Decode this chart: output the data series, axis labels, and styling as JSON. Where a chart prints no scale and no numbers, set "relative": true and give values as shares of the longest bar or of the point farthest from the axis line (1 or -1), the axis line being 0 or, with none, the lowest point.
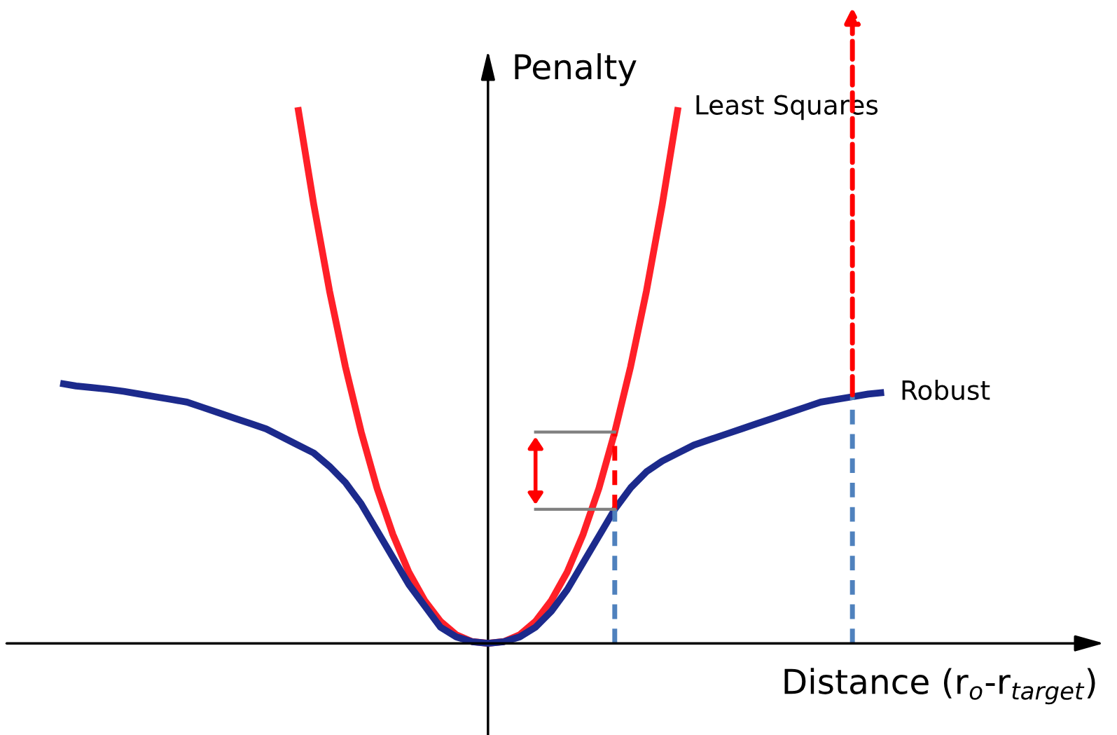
{
  "chart_data": {
    "type": "line",
    "relative": true,
    "xlabel": "Distance (r$_{o}$-r$_{target}$)",
    "ylabel": "Penalty",
    "legend": false,
    "grid": false,
    "categories": [
      null,
      null,
      null,
      null,
      null,
      null,
      null,
      null,
      null,
      null,
      null,
      null,
      null,
      null,
      null,
      null,
      null,
      null,
      null,
      null,
      null,
      null,
      null,
      null,
      null,
      null,
      null,
      null,
      null,
      null,
      null,
      null,
      null,
      null,
      null,
      null,
      null,
      null,
      null,
      null,
      null,
      null,
      null,
      null,
      null,
      null,
      null,
      null,
      null,
      null,
      null,
      null,
      null
    ],
    "series": [
      {
        "name": "Least Squares",
        "color": "#ff2028",
        "values": [
          null,
          null,
          null,
          null,
          null,
          null,
          null,
          null,
          null,
          null,
          null,
          null,
          null,
          null,
          null,
          1,
          0.819,
          0.657,
          0.516,
          0.394,
          0.289,
          0.203,
          0.133,
          0.08,
          0.041,
          0.016,
          0.0033,
          0,
          0.0033,
          0.016,
          0.041,
          0.08,
          0.133,
          0.203,
          0.289,
          0.394,
          0.516,
          0.657,
          0.819,
          1,
          null,
          null,
          null,
          null,
          null,
          null,
          null,
          null,
          null,
          null,
          null,
          null,
          null
        ]
      },
      {
        "name": "Robust",
        "color": "#1c2a8c",
        "values": [
          0.485,
          0.48,
          0.477,
          0.474,
          0.47,
          0.465,
          0.46,
          0.455,
          0.45,
          0.44,
          0.43,
          0.42,
          0.41,
          0.4,
          0.385,
          0.37,
          0.355,
          0.33,
          0.3,
          0.26,
          0.21,
          0.16,
          0.11,
          0.07,
          0.03,
          0.012,
          0.003,
          0,
          0.003,
          0.012,
          0.03,
          0.06,
          0.1,
          0.15,
          0.2,
          0.25,
          0.29,
          0.32,
          0.34,
          0.355,
          0.37,
          0.38,
          0.39,
          0.4,
          0.41,
          0.42,
          0.43,
          0.44,
          0.45,
          0.455,
          0.46,
          0.465,
          0.468
        ]
      }
    ]
  }
}
